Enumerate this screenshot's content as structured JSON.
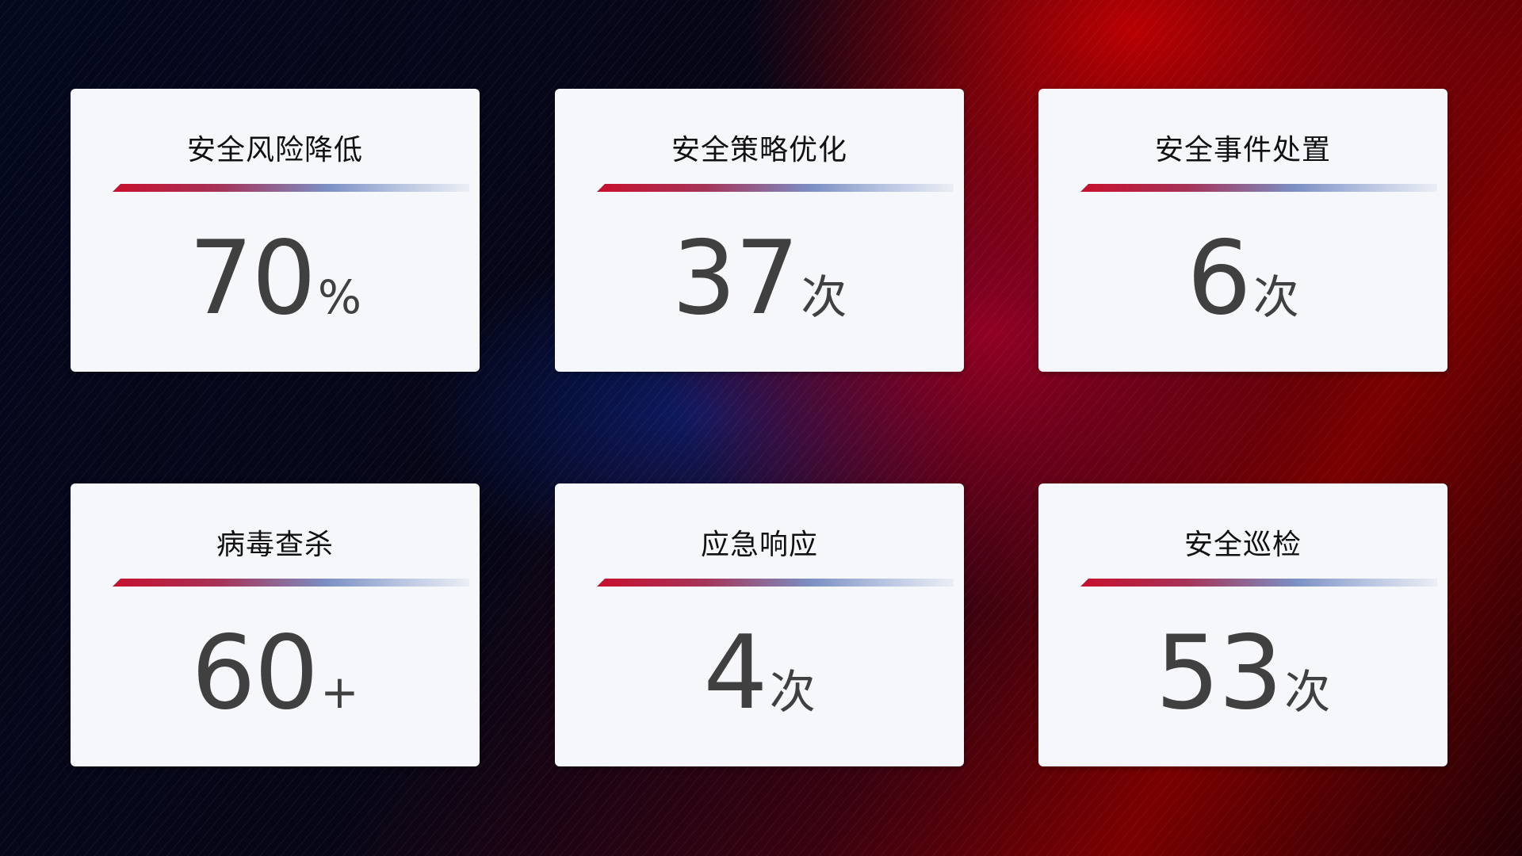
{
  "cards": [
    {
      "title": "安全风险降低",
      "value": "70",
      "unit": "%"
    },
    {
      "title": "安全策略优化",
      "value": "37",
      "unit": "次"
    },
    {
      "title": "安全事件处置",
      "value": "6",
      "unit": "次"
    },
    {
      "title": "病毒查杀",
      "value": "60",
      "unit": "+"
    },
    {
      "title": "应急响应",
      "value": "4",
      "unit": "次"
    },
    {
      "title": "安全巡检",
      "value": "53",
      "unit": "次"
    }
  ],
  "colors": {
    "accent_red": "#c8102e",
    "accent_blue": "#7b8fc4",
    "card_bg": "#f5f7fb",
    "value_text": "#404040"
  }
}
